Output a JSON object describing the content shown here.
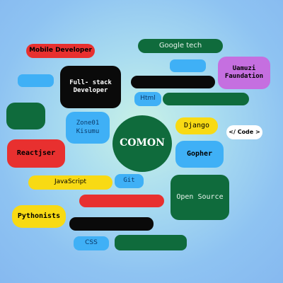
{
  "colors": {
    "red": "#e8302f",
    "green": "#0f6b3c",
    "black": "#0a0a0a",
    "blue": "#3fb0f6",
    "yellow": "#f8da14",
    "purple": "#c56fe0",
    "white": "#ffffff"
  },
  "tags": {
    "mobile_developer": "Mobile Developer",
    "google_tech": "Google tech",
    "umuzi_foundation": "Uamuzi\nFaundation",
    "full_stack_developer": "Full- stack\nDeveloper",
    "html": "Html",
    "zone01_kisumu": "Zone01\nKisumu",
    "comon": "COMON",
    "django": "Django",
    "code": "</ Code >",
    "reactjser": "Reactjser",
    "gopher": "Gopher",
    "javascript": "JavaScript",
    "git": "Git",
    "open_source": "Open Source",
    "pythonists": "Pythonists",
    "css": "CSS"
  }
}
